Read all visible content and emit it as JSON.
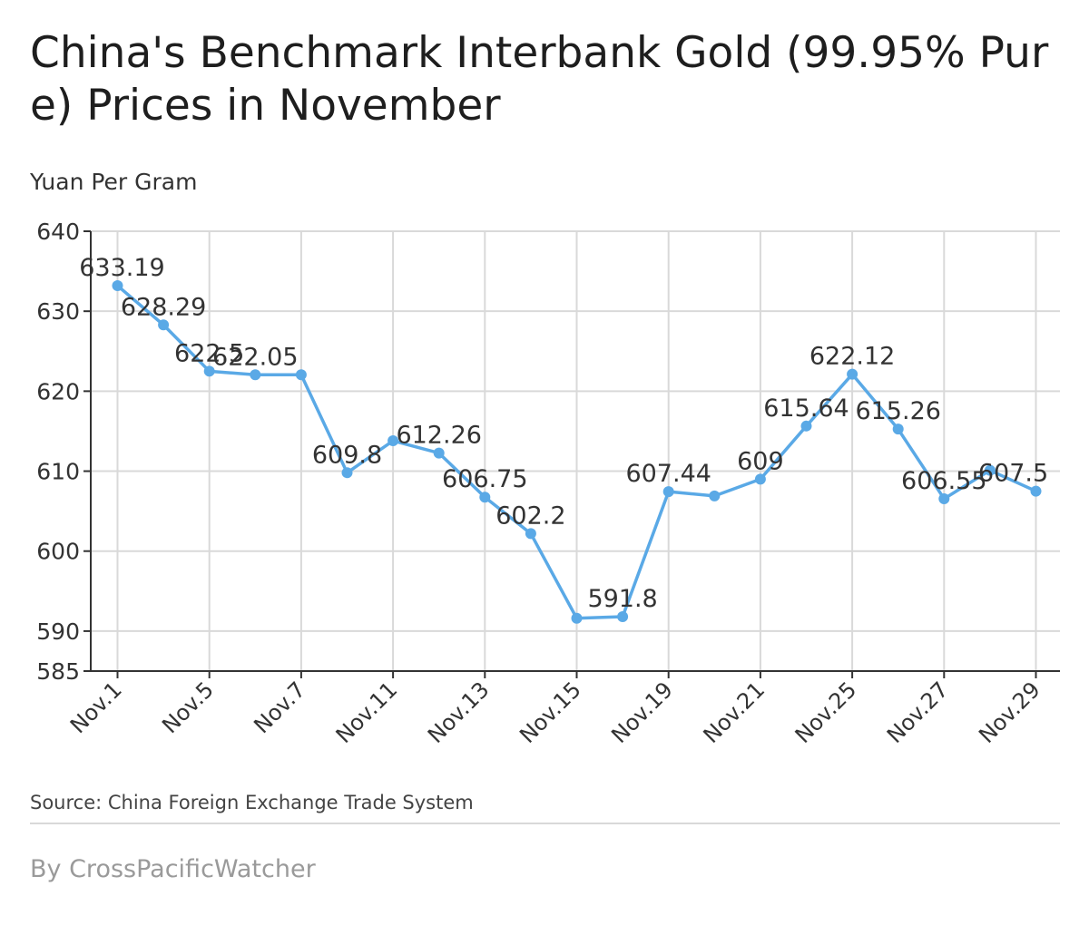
{
  "header": {
    "title": "China's Benchmark Interbank Gold (99.95% Pure) Prices in November",
    "unit_label": "Yuan Per Gram"
  },
  "footer": {
    "source": "Source: China Foreign Exchange Trade System",
    "byline": "By CrossPacificWatcher"
  },
  "colors": {
    "line": "#5aa9e6",
    "grid": "#d9d9d9",
    "axis": "#333333",
    "text": "#333333"
  },
  "chart_data": {
    "type": "line",
    "title": "China's Benchmark Interbank Gold (99.95% Pure) Prices in November",
    "ylabel": "Yuan Per Gram",
    "xlabel": "",
    "ylim": [
      585,
      640
    ],
    "yticks": [
      585,
      590,
      600,
      610,
      620,
      630,
      640
    ],
    "grid": true,
    "x": [
      "Nov.1",
      "",
      "Nov.5",
      "",
      "Nov.7",
      "",
      "Nov.11",
      "",
      "Nov.13",
      "",
      "Nov.15",
      "",
      "Nov.19",
      "",
      "Nov.21",
      "",
      "Nov.25",
      "",
      "Nov.27",
      "",
      "Nov.29"
    ],
    "x_tick_labels": [
      "Nov.1",
      "Nov.5",
      "Nov.7",
      "Nov.11",
      "Nov.13",
      "Nov.15",
      "Nov.19",
      "Nov.21",
      "Nov.25",
      "Nov.27",
      "Nov.29"
    ],
    "series": [
      {
        "values": [
          633.19,
          628.29,
          622.5,
          622.05,
          622.05,
          609.8,
          613.8,
          612.26,
          606.75,
          602.2,
          591.6,
          591.8,
          607.44,
          606.9,
          609,
          615.64,
          622.12,
          615.26,
          606.55,
          610.1,
          607.5
        ]
      }
    ],
    "data_labels": [
      "633.19",
      "628.29",
      "622.5",
      "622.05",
      "",
      "609.8",
      "",
      "612.26",
      "606.75",
      "602.2",
      "",
      "591.8",
      "607.44",
      "",
      "609",
      "615.64",
      "622.12",
      "615.26",
      "606.55",
      "",
      "607.5"
    ]
  }
}
